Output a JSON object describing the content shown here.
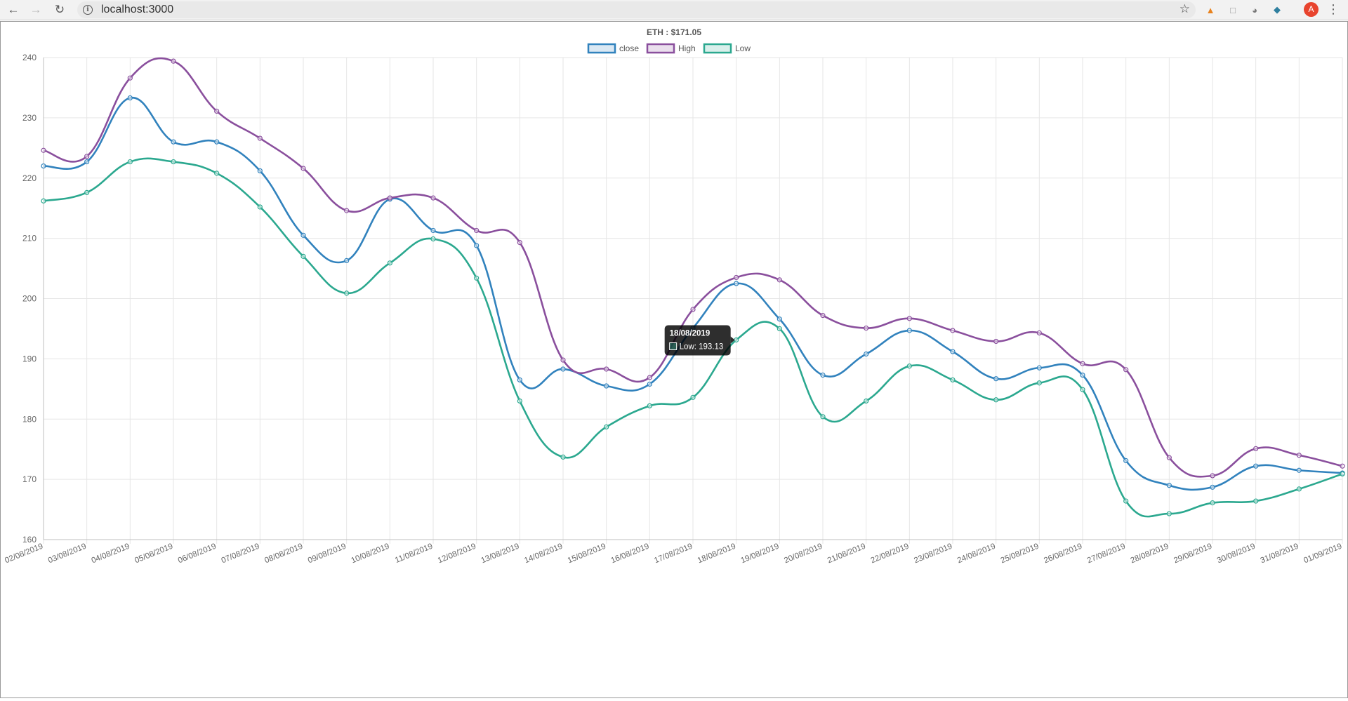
{
  "browser": {
    "url": "localhost:3000",
    "avatar_initial": "A",
    "icons": [
      "back-arrow-icon",
      "forward-arrow-icon",
      "reload-icon",
      "info-icon",
      "star-icon",
      "extension-icon",
      "profile-avatar",
      "menu-icon"
    ]
  },
  "chart_data": {
    "type": "line",
    "title": "ETH : $171.05",
    "xlabel": "",
    "ylabel": "",
    "ylim": [
      160,
      240
    ],
    "yticks": [
      160,
      170,
      180,
      190,
      200,
      210,
      220,
      230,
      240
    ],
    "grid": true,
    "legend_position": "top",
    "categories": [
      "02/08/2019",
      "03/08/2019",
      "04/08/2019",
      "05/08/2019",
      "06/08/2019",
      "07/08/2019",
      "08/08/2019",
      "09/08/2019",
      "10/08/2019",
      "11/08/2019",
      "12/08/2019",
      "13/08/2019",
      "14/08/2019",
      "15/08/2019",
      "16/08/2019",
      "17/08/2019",
      "18/08/2019",
      "19/08/2019",
      "20/08/2019",
      "21/08/2019",
      "22/08/2019",
      "23/08/2019",
      "24/08/2019",
      "25/08/2019",
      "26/08/2019",
      "27/08/2019",
      "28/08/2019",
      "29/08/2019",
      "30/08/2019",
      "31/08/2019",
      "01/09/2019"
    ],
    "series": [
      {
        "name": "close",
        "color": "#3182bd",
        "values": [
          222.0,
          222.7,
          233.3,
          226.0,
          226.0,
          221.2,
          210.5,
          206.3,
          216.5,
          211.3,
          208.8,
          186.5,
          188.3,
          185.5,
          185.8,
          195.1,
          202.5,
          196.6,
          187.3,
          190.8,
          194.7,
          191.2,
          186.7,
          188.5,
          187.3,
          173.1,
          169.0,
          168.7,
          172.2,
          171.5,
          171.05
        ]
      },
      {
        "name": "High",
        "color": "#8a4f9d",
        "values": [
          224.6,
          223.6,
          236.6,
          239.4,
          231.1,
          226.6,
          221.6,
          214.6,
          216.7,
          216.7,
          211.3,
          209.3,
          189.8,
          188.3,
          186.9,
          198.2,
          203.5,
          203.1,
          197.2,
          195.1,
          196.7,
          194.7,
          192.9,
          194.3,
          189.2,
          188.2,
          173.6,
          170.6,
          175.1,
          174.0,
          172.2
        ]
      },
      {
        "name": "Low",
        "color": "#2ba88f",
        "values": [
          216.2,
          217.6,
          222.7,
          222.7,
          220.8,
          215.2,
          207.0,
          200.9,
          205.9,
          209.9,
          203.4,
          183.0,
          173.7,
          178.7,
          182.2,
          183.6,
          193.13,
          195.0,
          180.4,
          183.0,
          188.8,
          186.5,
          183.2,
          186.0,
          184.9,
          166.4,
          164.3,
          166.1,
          166.4,
          168.4,
          170.9
        ]
      }
    ],
    "tooltip": {
      "category": "18/08/2019",
      "series": "Low",
      "text": "Low: 193.13",
      "index": 16,
      "series_index": 2
    }
  }
}
